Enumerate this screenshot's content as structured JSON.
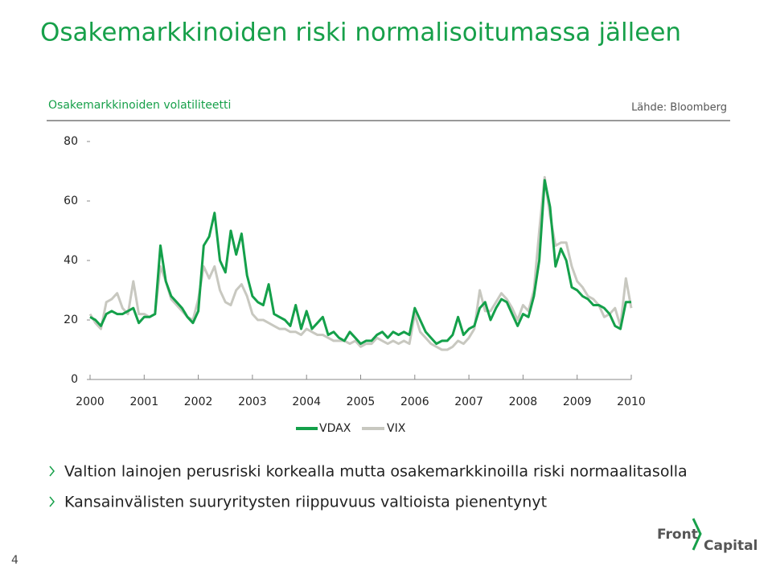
{
  "header": {
    "title": "Osakemarkkinoiden riski normalisoitumassa jälleen"
  },
  "chart_data": {
    "type": "line",
    "title": "Osakemarkkinoiden volatiliteetti",
    "source": "Lähde: Bloomberg",
    "x": [
      2000,
      2000.1,
      2000.2,
      2000.3,
      2000.4,
      2000.5,
      2000.6,
      2000.7,
      2000.8,
      2000.9,
      2001,
      2001.1,
      2001.2,
      2001.3,
      2001.4,
      2001.5,
      2001.6,
      2001.7,
      2001.8,
      2001.9,
      2002,
      2002.1,
      2002.2,
      2002.3,
      2002.4,
      2002.5,
      2002.6,
      2002.7,
      2002.8,
      2002.9,
      2003,
      2003.1,
      2003.2,
      2003.3,
      2003.4,
      2003.5,
      2003.6,
      2003.7,
      2003.8,
      2003.9,
      2004,
      2004.1,
      2004.2,
      2004.3,
      2004.4,
      2004.5,
      2004.6,
      2004.7,
      2004.8,
      2004.9,
      2005,
      2005.1,
      2005.2,
      2005.3,
      2005.4,
      2005.5,
      2005.6,
      2005.7,
      2005.8,
      2005.9,
      2006,
      2006.1,
      2006.2,
      2006.3,
      2006.4,
      2006.5,
      2006.6,
      2006.7,
      2006.8,
      2006.9,
      2007,
      2007.1,
      2007.2,
      2007.3,
      2007.4,
      2007.5,
      2007.6,
      2007.7,
      2007.8,
      2007.9,
      2008,
      2008.1,
      2008.2,
      2008.3,
      2008.4,
      2008.5,
      2008.6,
      2008.7,
      2008.8,
      2008.9,
      2009,
      2009.1,
      2009.2,
      2009.3,
      2009.4,
      2009.5,
      2009.6,
      2009.7,
      2009.8,
      2009.9,
      2010
    ],
    "xlim": [
      2000,
      2010
    ],
    "xticks": [
      2000,
      2001,
      2002,
      2003,
      2004,
      2005,
      2006,
      2007,
      2008,
      2009,
      2010
    ],
    "ylim": [
      0,
      80
    ],
    "yticks": [
      0,
      20,
      40,
      60,
      80
    ],
    "series": [
      {
        "name": "VDAX",
        "color": "#14a04a",
        "values": [
          21,
          20,
          18,
          22,
          23,
          22,
          22,
          23,
          24,
          19,
          21,
          21,
          22,
          45,
          33,
          28,
          26,
          24,
          21,
          19,
          23,
          45,
          48,
          56,
          40,
          36,
          50,
          42,
          49,
          35,
          28,
          26,
          25,
          32,
          22,
          21,
          20,
          18,
          25,
          17,
          23,
          17,
          19,
          21,
          15,
          16,
          14,
          13,
          16,
          14,
          12,
          13,
          13,
          15,
          16,
          14,
          16,
          15,
          16,
          15,
          24,
          20,
          16,
          14,
          12,
          13,
          13,
          15,
          21,
          15,
          17,
          18,
          24,
          26,
          20,
          24,
          27,
          26,
          22,
          18,
          22,
          21,
          28,
          40,
          67,
          58,
          38,
          44,
          40,
          31,
          30,
          28,
          27,
          25,
          25,
          24,
          22,
          18,
          17,
          26,
          26
        ]
      },
      {
        "name": "VIX",
        "color": "#c8c8c0",
        "values": [
          22,
          19,
          17,
          26,
          27,
          29,
          24,
          22,
          33,
          22,
          22,
          21,
          22,
          38,
          33,
          27,
          25,
          23,
          21,
          20,
          27,
          38,
          34,
          38,
          30,
          26,
          25,
          30,
          32,
          28,
          22,
          20,
          20,
          19,
          18,
          17,
          17,
          16,
          16,
          15,
          17,
          16,
          15,
          15,
          14,
          13,
          13,
          13,
          12,
          13,
          11,
          12,
          12,
          14,
          13,
          12,
          13,
          12,
          13,
          12,
          22,
          16,
          14,
          12,
          11,
          10,
          10,
          11,
          13,
          12,
          14,
          17,
          30,
          23,
          23,
          26,
          29,
          27,
          24,
          20,
          25,
          23,
          30,
          50,
          68,
          55,
          45,
          46,
          46,
          38,
          33,
          31,
          28,
          27,
          25,
          21,
          22,
          24,
          18,
          34,
          24
        ]
      }
    ]
  },
  "bullets": [
    "Valtion lainojen perusriski korkealla mutta osakemarkkinoilla riski normaalitasolla",
    "Kansainvälisten suuryritysten riippuvuus valtioista pienentynyt"
  ],
  "page_number": 4,
  "logo": {
    "line1": "Front",
    "line2": "Capital"
  }
}
